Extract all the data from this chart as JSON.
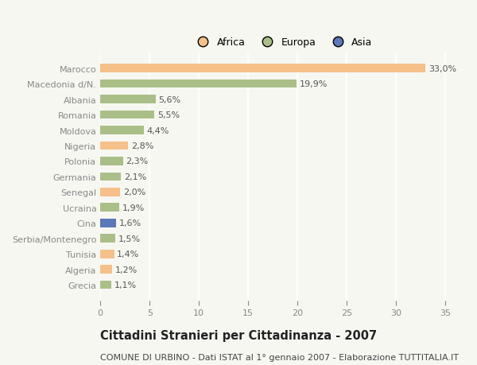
{
  "categories": [
    "Marocco",
    "Macedonia d/N.",
    "Albania",
    "Romania",
    "Moldova",
    "Nigeria",
    "Polonia",
    "Germania",
    "Senegal",
    "Ucraina",
    "Cina",
    "Serbia/Montenegro",
    "Tunisia",
    "Algeria",
    "Grecia"
  ],
  "values": [
    33.0,
    19.9,
    5.6,
    5.5,
    4.4,
    2.8,
    2.3,
    2.1,
    2.0,
    1.9,
    1.6,
    1.5,
    1.4,
    1.2,
    1.1
  ],
  "labels": [
    "33,0%",
    "19,9%",
    "5,6%",
    "5,5%",
    "4,4%",
    "2,8%",
    "2,3%",
    "2,1%",
    "2,0%",
    "1,9%",
    "1,6%",
    "1,5%",
    "1,4%",
    "1,2%",
    "1,1%"
  ],
  "continents": [
    "Africa",
    "Europa",
    "Europa",
    "Europa",
    "Europa",
    "Africa",
    "Europa",
    "Europa",
    "Africa",
    "Europa",
    "Asia",
    "Europa",
    "Africa",
    "Africa",
    "Europa"
  ],
  "colors": {
    "Africa": "#F5C08A",
    "Europa": "#AABF88",
    "Asia": "#5B78B8"
  },
  "xlim": [
    0,
    37
  ],
  "xticks": [
    0,
    5,
    10,
    15,
    20,
    25,
    30,
    35
  ],
  "title": "Cittadini Stranieri per Cittadinanza - 2007",
  "subtitle": "COMUNE DI URBINO - Dati ISTAT al 1° gennaio 2007 - Elaborazione TUTTITALIA.IT",
  "background_color": "#f7f7f2",
  "bar_height": 0.55,
  "label_fontsize": 8.0,
  "ytick_fontsize": 8.0,
  "xtick_fontsize": 8.0,
  "title_fontsize": 10.5,
  "subtitle_fontsize": 8.0,
  "legend_fontsize": 9.0
}
